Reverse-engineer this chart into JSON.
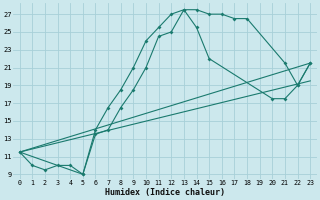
{
  "xlabel": "Humidex (Indice chaleur)",
  "background_color": "#cce8ed",
  "grid_color": "#a8d0d8",
  "line_color": "#1a7a6e",
  "xlim": [
    -0.5,
    23.5
  ],
  "ylim": [
    8.5,
    28.2
  ],
  "xticks": [
    0,
    1,
    2,
    3,
    4,
    5,
    6,
    7,
    8,
    9,
    10,
    11,
    12,
    13,
    14,
    15,
    16,
    17,
    18,
    19,
    20,
    21,
    22,
    23
  ],
  "yticks": [
    9,
    11,
    13,
    15,
    17,
    19,
    21,
    23,
    25,
    27
  ],
  "series": [
    {
      "x": [
        0,
        1,
        2,
        3,
        4,
        5,
        6,
        7,
        8,
        9,
        10,
        11,
        12,
        13,
        14,
        15,
        16,
        17,
        18,
        21,
        22,
        23
      ],
      "y": [
        11.5,
        10.0,
        9.5,
        10.0,
        10.0,
        9.0,
        14.0,
        16.5,
        18.5,
        21.0,
        24.0,
        25.5,
        27.0,
        27.5,
        27.5,
        27.0,
        27.0,
        26.5,
        26.5,
        21.5,
        19.0,
        21.5
      ],
      "markers": true
    },
    {
      "x": [
        0,
        5,
        6,
        7,
        8,
        9,
        10,
        11,
        12,
        13,
        14,
        15,
        20,
        21,
        22,
        23
      ],
      "y": [
        11.5,
        9.0,
        13.5,
        14.0,
        16.5,
        18.5,
        21.0,
        24.5,
        25.0,
        27.5,
        25.5,
        22.0,
        17.5,
        17.5,
        19.0,
        21.5
      ],
      "markers": true
    },
    {
      "x": [
        0,
        23
      ],
      "y": [
        11.5,
        21.5
      ],
      "markers": false
    },
    {
      "x": [
        0,
        23
      ],
      "y": [
        11.5,
        19.5
      ],
      "markers": false
    }
  ]
}
